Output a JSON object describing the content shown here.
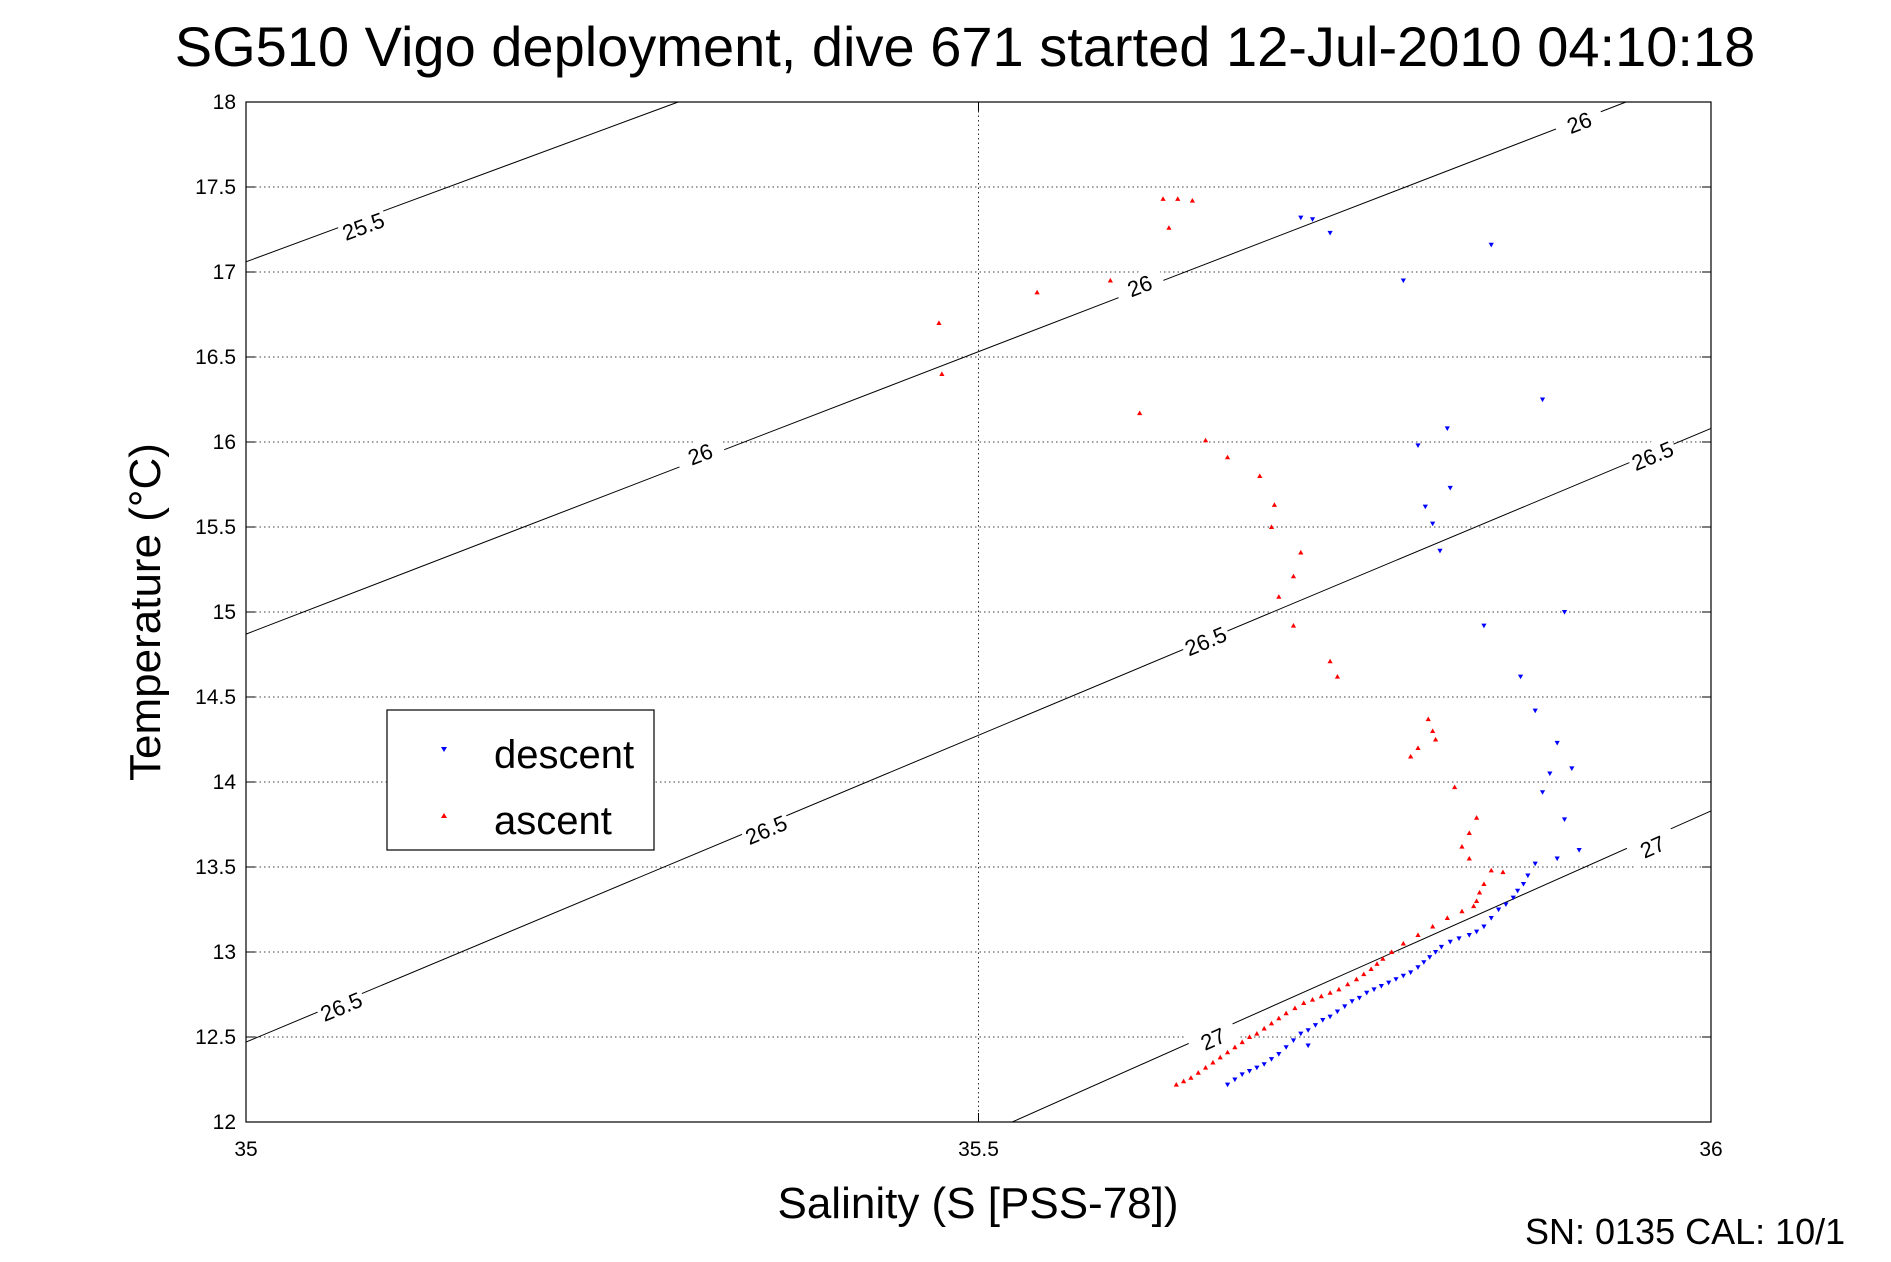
{
  "chart_data": {
    "type": "scatter",
    "title": "SG510 Vigo deployment, dive 671 started 12-Jul-2010 04:10:18",
    "xlabel": "Salinity (S [PSS-78])",
    "ylabel": "Temperature (°C)",
    "xlim": [
      35,
      36
    ],
    "ylim": [
      12,
      18
    ],
    "xticks": [
      "35",
      "35.5",
      "36"
    ],
    "yticks": [
      "12",
      "12.5",
      "13",
      "13.5",
      "14",
      "14.5",
      "15",
      "15.5",
      "16",
      "16.5",
      "17",
      "17.5",
      "18"
    ],
    "grid": true,
    "legend_placement": "left",
    "footer": "SN: 0135  CAL: 10/1",
    "contours": [
      {
        "label": "25.5",
        "points": [
          [
            35.0,
            17.06
          ],
          [
            35.295,
            18.0
          ]
        ],
        "label_positions": [
          [
            35.08,
            17.27
          ]
        ]
      },
      {
        "label": "26",
        "points": [
          [
            35.0,
            14.87
          ],
          [
            35.942,
            18.0
          ]
        ],
        "label_positions": [
          [
            35.31,
            15.93
          ],
          [
            35.61,
            16.92
          ],
          [
            35.91,
            17.88
          ]
        ]
      },
      {
        "label": "26.5",
        "points": [
          [
            35.0,
            12.47
          ],
          [
            36.0,
            16.08
          ]
        ],
        "label_positions": [
          [
            35.065,
            12.68
          ],
          [
            35.355,
            13.72
          ],
          [
            35.655,
            14.83
          ],
          [
            35.96,
            15.92
          ]
        ]
      },
      {
        "label": "27",
        "points": [
          [
            35.523,
            12.0
          ],
          [
            36.0,
            13.83
          ]
        ],
        "label_positions": [
          [
            35.66,
            12.49
          ],
          [
            35.96,
            13.62
          ]
        ]
      }
    ],
    "series": [
      {
        "name": "descent",
        "color": "#0000ff",
        "marker": "triangle-down",
        "points": [
          [
            35.72,
            17.32
          ],
          [
            35.728,
            17.31
          ],
          [
            35.74,
            17.23
          ],
          [
            35.85,
            17.16
          ],
          [
            35.79,
            16.95
          ],
          [
            35.885,
            16.25
          ],
          [
            35.82,
            16.08
          ],
          [
            35.8,
            15.98
          ],
          [
            35.822,
            15.73
          ],
          [
            35.805,
            15.62
          ],
          [
            35.81,
            15.52
          ],
          [
            35.815,
            15.36
          ],
          [
            35.9,
            15.0
          ],
          [
            35.845,
            14.92
          ],
          [
            35.87,
            14.62
          ],
          [
            35.88,
            14.42
          ],
          [
            35.895,
            14.23
          ],
          [
            35.905,
            14.08
          ],
          [
            35.89,
            14.05
          ],
          [
            35.885,
            13.94
          ],
          [
            35.9,
            13.78
          ],
          [
            35.91,
            13.6
          ],
          [
            35.895,
            13.55
          ],
          [
            35.88,
            13.52
          ],
          [
            35.875,
            13.45
          ],
          [
            35.872,
            13.4
          ],
          [
            35.868,
            13.36
          ],
          [
            35.865,
            13.32
          ],
          [
            35.86,
            13.28
          ],
          [
            35.855,
            13.25
          ],
          [
            35.85,
            13.2
          ],
          [
            35.845,
            13.15
          ],
          [
            35.84,
            13.12
          ],
          [
            35.835,
            13.1
          ],
          [
            35.828,
            13.08
          ],
          [
            35.822,
            13.06
          ],
          [
            35.816,
            13.03
          ],
          [
            35.812,
            13.0
          ],
          [
            35.808,
            12.97
          ],
          [
            35.804,
            12.94
          ],
          [
            35.8,
            12.91
          ],
          [
            35.795,
            12.88
          ],
          [
            35.79,
            12.86
          ],
          [
            35.785,
            12.84
          ],
          [
            35.78,
            12.82
          ],
          [
            35.775,
            12.8
          ],
          [
            35.77,
            12.78
          ],
          [
            35.765,
            12.76
          ],
          [
            35.76,
            12.73
          ],
          [
            35.755,
            12.71
          ],
          [
            35.75,
            12.68
          ],
          [
            35.745,
            12.65
          ],
          [
            35.74,
            12.62
          ],
          [
            35.735,
            12.6
          ],
          [
            35.73,
            12.57
          ],
          [
            35.725,
            12.54
          ],
          [
            35.72,
            12.52
          ],
          [
            35.715,
            12.48
          ],
          [
            35.71,
            12.44
          ],
          [
            35.705,
            12.4
          ],
          [
            35.7,
            12.37
          ],
          [
            35.695,
            12.34
          ],
          [
            35.69,
            12.32
          ],
          [
            35.685,
            12.3
          ],
          [
            35.68,
            12.28
          ],
          [
            35.675,
            12.25
          ],
          [
            35.67,
            12.22
          ],
          [
            35.725,
            12.45
          ]
        ]
      },
      {
        "name": "ascent",
        "color": "#ff0000",
        "marker": "triangle-up",
        "points": [
          [
            35.626,
            17.43
          ],
          [
            35.636,
            17.43
          ],
          [
            35.646,
            17.42
          ],
          [
            35.63,
            17.26
          ],
          [
            35.59,
            16.95
          ],
          [
            35.54,
            16.88
          ],
          [
            35.473,
            16.7
          ],
          [
            35.475,
            16.4
          ],
          [
            35.61,
            16.17
          ],
          [
            35.655,
            16.01
          ],
          [
            35.67,
            15.91
          ],
          [
            35.692,
            15.8
          ],
          [
            35.702,
            15.63
          ],
          [
            35.7,
            15.5
          ],
          [
            35.72,
            15.35
          ],
          [
            35.715,
            15.21
          ],
          [
            35.705,
            15.09
          ],
          [
            35.715,
            14.92
          ],
          [
            35.74,
            14.71
          ],
          [
            35.745,
            14.62
          ],
          [
            35.807,
            14.37
          ],
          [
            35.81,
            14.3
          ],
          [
            35.812,
            14.25
          ],
          [
            35.8,
            14.2
          ],
          [
            35.795,
            14.15
          ],
          [
            35.825,
            13.97
          ],
          [
            35.84,
            13.79
          ],
          [
            35.835,
            13.7
          ],
          [
            35.83,
            13.62
          ],
          [
            35.835,
            13.55
          ],
          [
            35.85,
            13.48
          ],
          [
            35.858,
            13.47
          ],
          [
            35.845,
            13.4
          ],
          [
            35.842,
            13.35
          ],
          [
            35.84,
            13.3
          ],
          [
            35.838,
            13.27
          ],
          [
            35.83,
            13.24
          ],
          [
            35.82,
            13.2
          ],
          [
            35.81,
            13.15
          ],
          [
            35.8,
            13.1
          ],
          [
            35.79,
            13.05
          ],
          [
            35.782,
            13.0
          ],
          [
            35.776,
            12.96
          ],
          [
            35.772,
            12.93
          ],
          [
            35.768,
            12.9
          ],
          [
            35.763,
            12.87
          ],
          [
            35.758,
            12.84
          ],
          [
            35.752,
            12.81
          ],
          [
            35.746,
            12.78
          ],
          [
            35.74,
            12.76
          ],
          [
            35.734,
            12.74
          ],
          [
            35.728,
            12.72
          ],
          [
            35.722,
            12.7
          ],
          [
            35.716,
            12.67
          ],
          [
            35.71,
            12.64
          ],
          [
            35.705,
            12.61
          ],
          [
            35.7,
            12.58
          ],
          [
            35.695,
            12.55
          ],
          [
            35.69,
            12.52
          ],
          [
            35.685,
            12.5
          ],
          [
            35.68,
            12.47
          ],
          [
            35.675,
            12.44
          ],
          [
            35.67,
            12.41
          ],
          [
            35.665,
            12.38
          ],
          [
            35.66,
            12.35
          ],
          [
            35.655,
            12.32
          ],
          [
            35.65,
            12.29
          ],
          [
            35.645,
            12.26
          ],
          [
            35.64,
            12.24
          ],
          [
            35.635,
            12.22
          ]
        ]
      }
    ]
  }
}
